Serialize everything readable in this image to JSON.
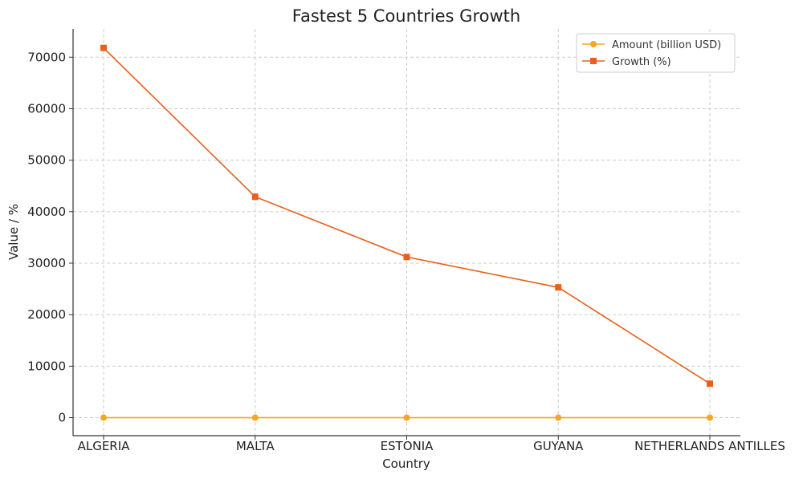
{
  "chart_data": {
    "type": "line",
    "title": "Fastest 5 Countries Growth",
    "xlabel": "Country",
    "ylabel": "Value / %",
    "categories": [
      "ALGERIA",
      "MALTA",
      "ESTONIA",
      "GUYANA",
      "NETHERLANDS ANTILLES"
    ],
    "ylim": [
      -3500,
      75500
    ],
    "yticks": [
      0,
      10000,
      20000,
      30000,
      40000,
      50000,
      60000,
      70000
    ],
    "grid": true,
    "legend_position": "top-right",
    "series": [
      {
        "name": "Amount (billion USD)",
        "values": [
          0,
          0,
          0,
          0,
          0
        ],
        "color": "#f5a623",
        "marker": "circle"
      },
      {
        "name": "Growth (%)",
        "values": [
          71800,
          42900,
          31200,
          25300,
          6600
        ],
        "color": "#e8601c",
        "marker": "square"
      }
    ]
  }
}
